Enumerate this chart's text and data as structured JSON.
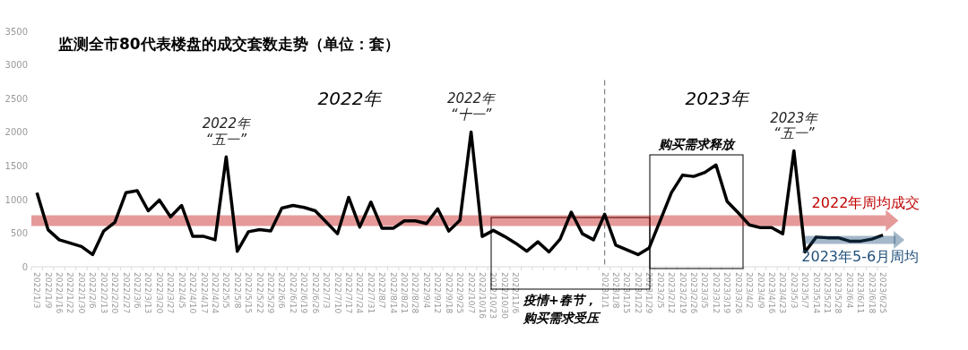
{
  "chart_data": {
    "type": "line",
    "title": "监测全市80代表楼盘的成交套数走势（单位：套）",
    "categories": [
      "2022/1/3",
      "2022/1/9",
      "2022/1/16",
      "2022/1/22",
      "2022/1/30",
      "2022/2/6",
      "2022/2/13",
      "2022/2/20",
      "2022/2/27",
      "2022/3/6",
      "2022/3/13",
      "2022/3/20",
      "2022/3/27",
      "2022/4/5",
      "2022/4/10",
      "2022/4/17",
      "2022/4/24",
      "2022/5/5",
      "2022/5/8",
      "2022/5/15",
      "2022/5/22",
      "2022/5/29",
      "2022/6/6",
      "2022/6/12",
      "2022/6/19",
      "2022/6/26",
      "2022/7/3",
      "2022/7/10",
      "2022/7/17",
      "2022/7/24",
      "2022/7/31",
      "2022/8/7",
      "2022/8/14",
      "2022/8/21",
      "2022/8/28",
      "2022/9/4",
      "2022/9/12",
      "2022/9/18",
      "2022/9/25",
      "2022/10/7",
      "2022/10/16",
      "2022/10/23",
      "2022/10/30",
      "2022/11/6",
      null,
      null,
      null,
      null,
      null,
      null,
      null,
      "2023/1/1",
      "2023/1/8",
      "2023/1/15",
      "2023/1/22",
      "2023/1/29",
      "2023/2/5",
      "2023/2/12",
      "2023/2/19",
      "2023/2/26",
      "2023/3/5",
      "2023/3/12",
      "2023/3/19",
      "2023/3/26",
      "2023/4/2",
      "2023/4/9",
      "2023/4/16",
      "2023/4/23",
      "2023/5/3",
      "2023/5/7",
      "2023/5/14",
      "2023/5/21",
      "2023/5/28",
      "2023/6/4",
      "2023/6/11",
      "2023/6/18",
      "2023/6/25"
    ],
    "series": [
      {
        "color": "#000000",
        "values": [
          1100,
          550,
          400,
          350,
          300,
          180,
          530,
          660,
          1100,
          1130,
          830,
          990,
          740,
          910,
          450,
          450,
          400,
          1630,
          230,
          520,
          550,
          530,
          870,
          910,
          880,
          830,
          660,
          490,
          1030,
          590,
          960,
          570,
          570,
          680,
          680,
          640,
          860,
          530,
          690,
          2000,
          450,
          540,
          450,
          350,
          230,
          370,
          220,
          410,
          810,
          490,
          400,
          780,
          320,
          250,
          180,
          280,
          690,
          1100,
          1360,
          1340,
          1400,
          1510,
          970,
          800,
          620,
          580,
          580,
          490,
          1720,
          220,
          440,
          430,
          430,
          380,
          380,
          410,
          470
        ]
      },
      {
        "name": "2023年5-6月周均",
        "color": "#1f4e79",
        "values": [
          null,
          null,
          null,
          null,
          null,
          null,
          null,
          null,
          null,
          null,
          null,
          null,
          null,
          null,
          null,
          null,
          null,
          null,
          null,
          null,
          null,
          null,
          null,
          null,
          null,
          null,
          null,
          null,
          null,
          null,
          null,
          null,
          null,
          null,
          null,
          null,
          null,
          null,
          null,
          null,
          null,
          null,
          null,
          null,
          null,
          null,
          null,
          null,
          null,
          null,
          null,
          null,
          null,
          null,
          null,
          null,
          null,
          null,
          null,
          null,
          null,
          null,
          null,
          null,
          null,
          null,
          null,
          null,
          null,
          400,
          400,
          400,
          400,
          400,
          400,
          400,
          400
        ]
      }
    ],
    "ylim": [
      0,
      3500
    ],
    "yticks": [
      0,
      500,
      1000,
      1500,
      2000,
      2500,
      3000,
      3500
    ],
    "grid": false,
    "marker": "none",
    "line_style": "solid",
    "ref_lines": [
      {
        "axis": "y",
        "value": 685,
        "label": "2022年周均成交",
        "color": "#c00000"
      },
      {
        "axis": "x",
        "value": "2023/1/1",
        "color": "#7f7f7f",
        "line_style": "dashed"
      }
    ],
    "annotations": [
      "2022年",
      "2023年",
      "购买需求释放",
      "疫情+春节，",
      "购买需求受压",
      {
        "text": "2022年\n“五一”",
        "x": "2022/5/5",
        "y": 1630
      },
      {
        "text": "2022年\n“十一”",
        "x": "2022/10/7",
        "y": 2000
      },
      {
        "text": "2023年\n“五一”",
        "x": "2023/5/3",
        "y": 1720
      }
    ]
  }
}
